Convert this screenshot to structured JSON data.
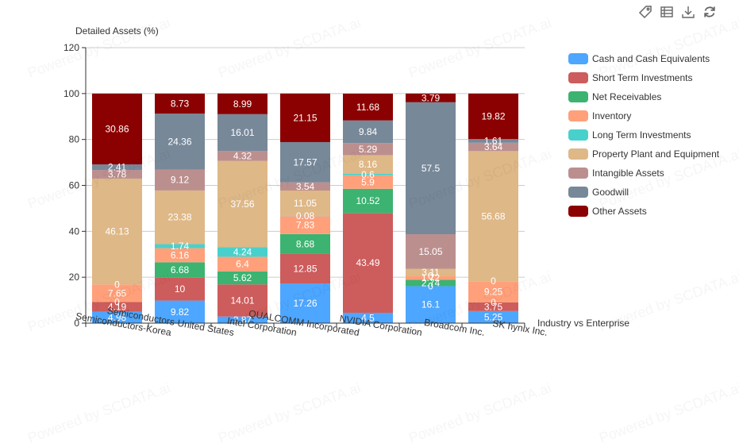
{
  "toolbar": {
    "icons": [
      {
        "name": "tag-icon",
        "label": "Toggle data labels"
      },
      {
        "name": "table-icon",
        "label": "Data view"
      },
      {
        "name": "download-icon",
        "label": "Save as image"
      },
      {
        "name": "refresh-icon",
        "label": "Restore"
      }
    ]
  },
  "watermark": "Powered by SCDATA.ai",
  "chart_data": {
    "type": "bar",
    "stacked": true,
    "title": "",
    "ylabel": "Detailed Assets (%)",
    "xlabel": "Industry vs Enterprise",
    "ylim": [
      0,
      120
    ],
    "yticks": [
      0,
      20,
      40,
      60,
      80,
      100,
      120
    ],
    "grid": true,
    "legend_position": "right",
    "categories": [
      "Semiconductors-Korea",
      "Semiconductors-United States",
      "Intel Corporation",
      "QUALCOMM Incorporated",
      "NVIDIA Corporation",
      "Broadcom Inc.",
      "SK hynix Inc."
    ],
    "series": [
      {
        "name": "Cash and Cash Equivalents",
        "color": "#4da6ff",
        "values": [
          4.98,
          9.82,
          2.87,
          17.26,
          4.5,
          16.1,
          5.25
        ]
      },
      {
        "name": "Short Term Investments",
        "color": "#cd5c5c",
        "values": [
          4.19,
          10,
          14.01,
          12.85,
          43.49,
          0,
          3.75
        ]
      },
      {
        "name": "Net Receivables",
        "color": "#3cb371",
        "values": [
          0,
          6.68,
          5.62,
          8.68,
          10.52,
          2.74,
          0
        ]
      },
      {
        "name": "Inventory",
        "color": "#ffa07a",
        "values": [
          7.65,
          6.16,
          6.4,
          7.83,
          5.9,
          1.72,
          9.25
        ]
      },
      {
        "name": "Long Term Investments",
        "color": "#48d1cc",
        "values": [
          0,
          1.74,
          4.24,
          0.08,
          0.6,
          0,
          0
        ]
      },
      {
        "name": "Property Plant and Equipment",
        "color": "#deb887",
        "values": [
          46.13,
          23.38,
          37.56,
          11.05,
          8.16,
          3.11,
          56.68
        ]
      },
      {
        "name": "Intangible Assets",
        "color": "#bc8f8f",
        "values": [
          3.78,
          9.12,
          4.32,
          3.54,
          5.29,
          15.05,
          3.64
        ]
      },
      {
        "name": "Goodwill",
        "color": "#778899",
        "values": [
          2.41,
          24.36,
          16.01,
          17.57,
          9.84,
          57.5,
          1.61
        ]
      },
      {
        "name": "Other Assets",
        "color": "#8b0000",
        "values": [
          30.86,
          8.73,
          8.99,
          21.15,
          11.68,
          3.79,
          19.82
        ]
      }
    ]
  }
}
